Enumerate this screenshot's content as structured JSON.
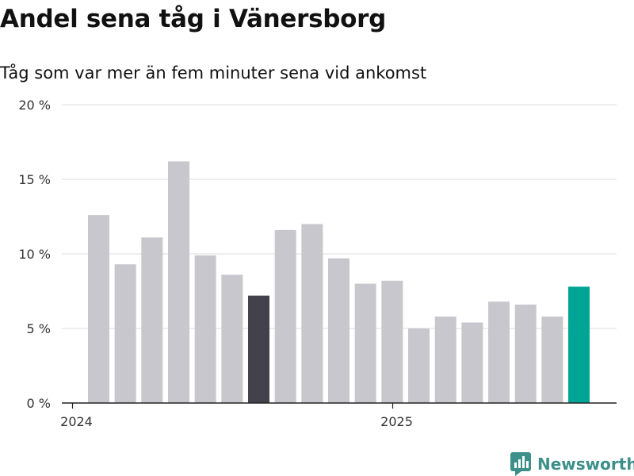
{
  "chart_data": {
    "type": "bar",
    "title": "Andel sena tåg i Vänersborg",
    "subtitle": "Tåg som var mer än fem minuter sena vid ankomst",
    "xlabel": "",
    "ylabel": "",
    "ylim": [
      0,
      20
    ],
    "y_ticks": [
      {
        "value": 0,
        "label": "0 %"
      },
      {
        "value": 5,
        "label": "5 %"
      },
      {
        "value": 10,
        "label": "10 %"
      },
      {
        "value": 15,
        "label": "15 %"
      },
      {
        "value": 20,
        "label": "20 %"
      }
    ],
    "x_ticks": [
      {
        "index": 0,
        "label": "2024"
      },
      {
        "index": 12,
        "label": "2025"
      }
    ],
    "grid": true,
    "values": [
      12.6,
      9.3,
      11.1,
      16.2,
      9.9,
      8.6,
      7.2,
      11.6,
      12.0,
      9.7,
      8.0,
      8.2,
      5.0,
      5.8,
      5.4,
      6.8,
      6.6,
      5.8,
      7.8
    ],
    "highlights": [
      {
        "index": 6,
        "color": "#43414c"
      },
      {
        "index": 18,
        "color": "#00a595"
      }
    ],
    "bar_color": "#c8c7cd"
  },
  "brand": {
    "name": "Newsworthy",
    "logo_icon": "bar-chart-speech-icon",
    "color": "#3d8f8a"
  }
}
